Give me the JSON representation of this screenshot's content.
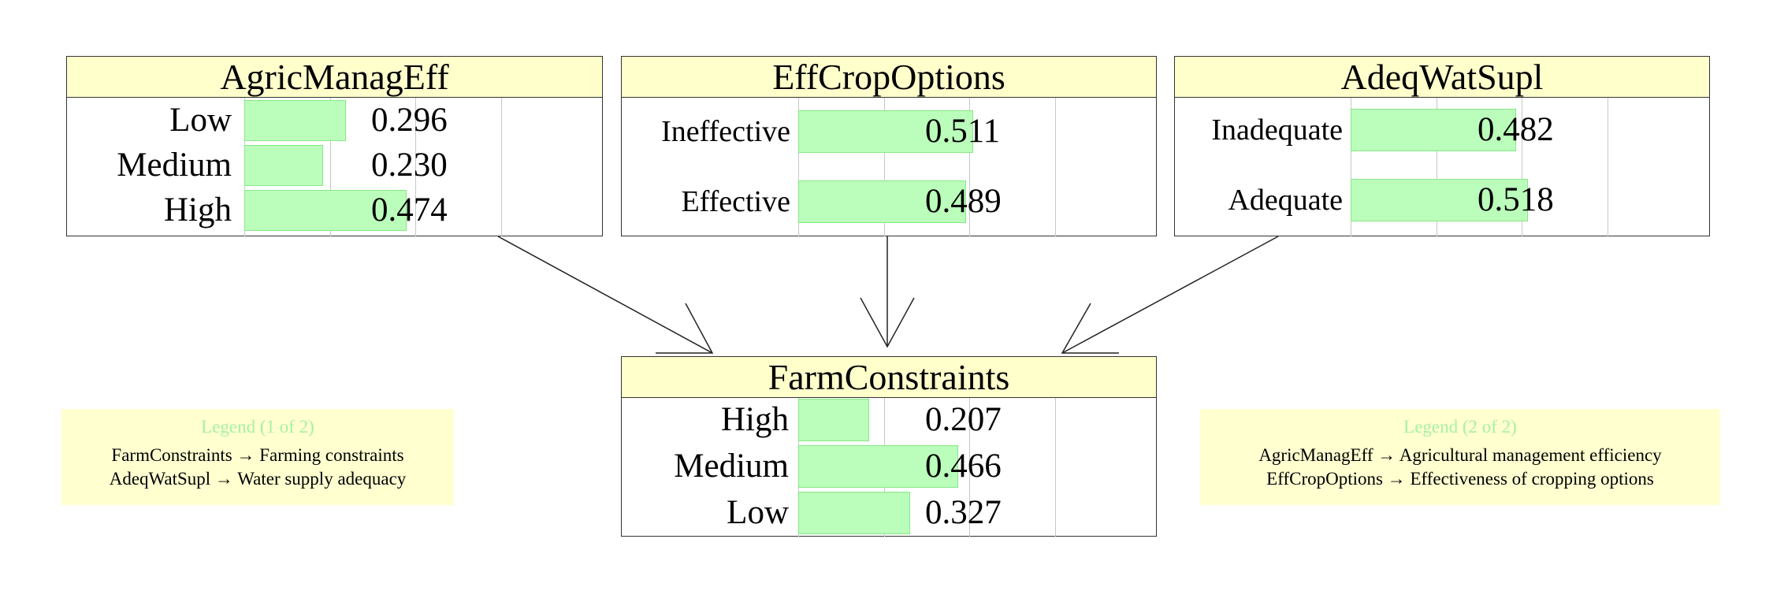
{
  "nodes": [
    {
      "id": "agricmanageff",
      "title": "AgricManagEff",
      "states": [
        {
          "label": "Low",
          "value": 0.296,
          "value_text": "0.296"
        },
        {
          "label": "Medium",
          "value": 0.23,
          "value_text": "0.230"
        },
        {
          "label": "High",
          "value": 0.474,
          "value_text": "0.474"
        }
      ]
    },
    {
      "id": "effcropoptions",
      "title": "EffCropOptions",
      "states": [
        {
          "label": "Ineffective",
          "value": 0.511,
          "value_text": "0.511"
        },
        {
          "label": "Effective",
          "value": 0.489,
          "value_text": "0.489"
        }
      ]
    },
    {
      "id": "adeqwatsupl",
      "title": "AdeqWatSupl",
      "states": [
        {
          "label": "Inadequate",
          "value": 0.482,
          "value_text": "0.482"
        },
        {
          "label": "Adequate",
          "value": 0.518,
          "value_text": "0.518"
        }
      ]
    },
    {
      "id": "farmconstraints",
      "title": "FarmConstraints",
      "states": [
        {
          "label": "High",
          "value": 0.207,
          "value_text": "0.207"
        },
        {
          "label": "Medium",
          "value": 0.466,
          "value_text": "0.466"
        },
        {
          "label": "Low",
          "value": 0.327,
          "value_text": "0.327"
        }
      ]
    }
  ],
  "edges": [
    {
      "from": "AgricManagEff",
      "to": "FarmConstraints"
    },
    {
      "from": "EffCropOptions",
      "to": "FarmConstraints"
    },
    {
      "from": "AdeqWatSupl",
      "to": "FarmConstraints"
    }
  ],
  "legends": [
    {
      "title": "Legend (1 of 2)",
      "entries": [
        "FarmConstraints → Farming constraints",
        "AdeqWatSupl → Water supply adequacy"
      ]
    },
    {
      "title": "Legend (2 of 2)",
      "entries": [
        "AgricManagEff → Agricultural management efficiency",
        "EffCropOptions → Effectiveness of cropping options"
      ]
    }
  ],
  "colors": {
    "bar_fill": "#bbfdbb",
    "bar_border": "#86e886",
    "title_fill": "#ffffcc",
    "legend_fill": "#ffffd0",
    "legend_title": "#a7f0a7"
  }
}
